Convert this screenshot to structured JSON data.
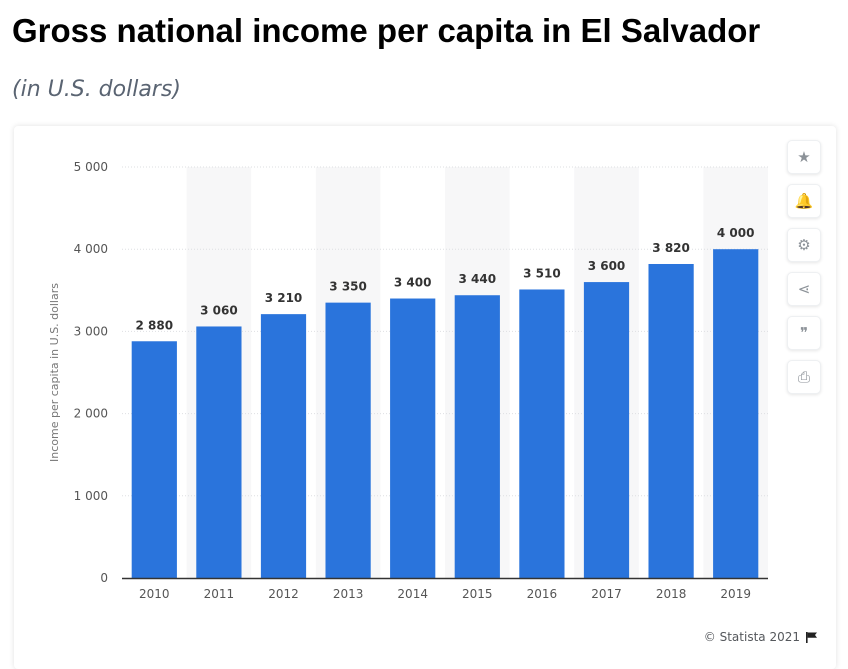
{
  "page": {
    "title": "Gross national income per capita in El Salvador",
    "subtitle": "(in U.S. dollars)",
    "footer": "© Statista 2021"
  },
  "toolbar": {
    "buttons": [
      {
        "name": "star-icon",
        "glyph": "★"
      },
      {
        "name": "bell-icon",
        "glyph": "🔔"
      },
      {
        "name": "gear-icon",
        "glyph": "⚙"
      },
      {
        "name": "share-icon",
        "glyph": "⋖"
      },
      {
        "name": "quote-icon",
        "glyph": "❞"
      },
      {
        "name": "print-icon",
        "glyph": "⎙"
      }
    ]
  },
  "colors": {
    "bar": "#2a74dc",
    "band": "#f7f7f8",
    "grid": "#dedfe2",
    "axis": "#333333"
  },
  "chart_data": {
    "type": "bar",
    "categories": [
      "2010",
      "2011",
      "2012",
      "2013",
      "2014",
      "2015",
      "2016",
      "2017",
      "2018",
      "2019"
    ],
    "values": [
      2880,
      3060,
      3210,
      3350,
      3400,
      3440,
      3510,
      3600,
      3820,
      4000
    ],
    "value_labels": [
      "2 880",
      "3 060",
      "3 210",
      "3 350",
      "3 400",
      "3 440",
      "3 510",
      "3 600",
      "3 820",
      "4 000"
    ],
    "title": "",
    "xlabel": "",
    "ylabel": "Income per capita in U.S. dollars",
    "ylim": [
      0,
      5000
    ],
    "yticks": [
      0,
      1000,
      2000,
      3000,
      4000,
      5000
    ],
    "ytick_labels": [
      "0",
      "1 000",
      "2 000",
      "3 000",
      "4 000",
      "5 000"
    ],
    "grid": true,
    "legend": "none"
  }
}
